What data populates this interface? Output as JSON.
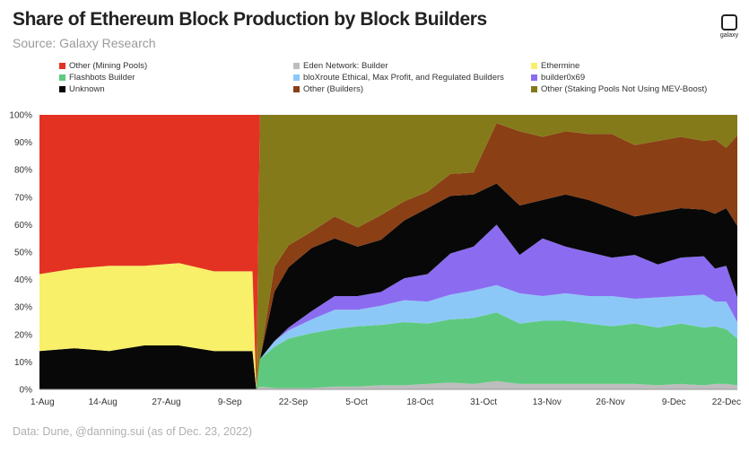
{
  "header": {
    "title": "Share of Ethereum Block Production by Block Builders",
    "subtitle": "Source: Galaxy Research",
    "logo_text": "galaxy"
  },
  "footer": {
    "note": "Data: Dune, @danning.sui (as of Dec. 23, 2022)"
  },
  "chart_data": {
    "type": "area",
    "stacked": true,
    "title": "Share of Ethereum Block Production by Block Builders",
    "xlabel": "",
    "ylabel": "",
    "ylim": [
      0,
      100
    ],
    "y_ticks": [
      "0%",
      "10%",
      "20%",
      "30%",
      "40%",
      "50%",
      "60%",
      "70%",
      "80%",
      "90%",
      "100%"
    ],
    "x_ticks": [
      "1-Aug",
      "14-Aug",
      "27-Aug",
      "9-Sep",
      "22-Sep",
      "5-Oct",
      "18-Oct",
      "31-Oct",
      "13-Nov",
      "26-Nov",
      "9-Dec",
      "22-Dec"
    ],
    "x": [
      "1-Aug",
      "8-Aug",
      "14-Aug",
      "21-Aug",
      "27-Aug",
      "3-Sep",
      "9-Sep",
      "14-Sep",
      "15-Sep",
      "16-Sep",
      "19-Sep",
      "22-Sep",
      "27-Sep",
      "2-Oct",
      "5-Oct",
      "10-Oct",
      "14-Oct",
      "18-Oct",
      "23-Oct",
      "27-Oct",
      "31-Oct",
      "3-Nov",
      "8-Nov",
      "13-Nov",
      "17-Nov",
      "21-Nov",
      "26-Nov",
      "30-Nov",
      "5-Dec",
      "9-Dec",
      "13-Dec",
      "18-Dec",
      "22-Dec"
    ],
    "legend_position": "top",
    "grid": false,
    "series": [
      {
        "name": "Eden Network: Builder",
        "color": "#bdbdbd",
        "values": [
          0,
          0,
          0,
          0,
          0,
          0,
          0,
          0,
          0,
          1,
          0.5,
          0.5,
          0.5,
          1,
          1,
          1.5,
          1.5,
          2,
          2.5,
          2,
          3,
          2,
          2,
          2,
          2,
          2,
          2,
          1.5,
          2,
          1.5,
          2,
          2,
          1.5
        ]
      },
      {
        "name": "Flashbots Builder",
        "color": "#5ec97e",
        "values": [
          0,
          0,
          0,
          0,
          0,
          0,
          0,
          0,
          0,
          10,
          15,
          18,
          20,
          21,
          22,
          22,
          23,
          22,
          23,
          24,
          25,
          22,
          23,
          23,
          22,
          21,
          22,
          21,
          22,
          21,
          21,
          20,
          17
        ]
      },
      {
        "name": "bloXroute Ethical, Max Profit, and Regulated Builders",
        "color": "#8cc8f7",
        "values": [
          0,
          0,
          0,
          0,
          0,
          0,
          0,
          0,
          0,
          0,
          2,
          3,
          5,
          7,
          6,
          7,
          8,
          8,
          9,
          10,
          10,
          11,
          9,
          10,
          10,
          11,
          9,
          11,
          10,
          12,
          9,
          10,
          6
        ]
      },
      {
        "name": "builder0x69",
        "color": "#8b6cf0",
        "values": [
          0,
          0,
          0,
          0,
          0,
          0,
          0,
          0,
          0,
          0,
          0,
          1,
          3,
          5,
          5,
          5,
          8,
          10,
          15,
          16,
          22,
          14,
          21,
          17,
          16,
          14,
          16,
          12,
          14,
          14,
          12,
          13,
          9
        ]
      },
      {
        "name": "Unknown",
        "color": "#080808",
        "values": [
          14,
          15,
          14,
          16,
          16,
          14,
          14,
          14,
          0,
          0,
          18,
          22,
          23,
          21,
          18,
          19,
          21,
          24,
          21,
          19,
          15,
          18,
          14,
          19,
          19,
          18,
          14,
          19,
          18,
          17,
          20,
          21,
          26
        ]
      },
      {
        "name": "Other (Builders)",
        "color": "#8a3f15",
        "values": [
          0,
          0,
          0,
          0,
          0,
          0,
          0,
          0,
          0,
          0,
          9,
          8,
          6,
          8,
          7,
          9,
          7,
          6,
          8,
          8,
          22,
          27,
          23,
          23,
          24,
          27,
          26,
          26,
          26,
          25,
          27,
          22,
          33
        ]
      },
      {
        "name": "Other (Staking Pools Not Using MEV-Boost)",
        "color": "#857a1a",
        "values": [
          0,
          0,
          0,
          0,
          0,
          0,
          0,
          0,
          0,
          89,
          55.5,
          47.5,
          42.5,
          37,
          41,
          36.5,
          31.5,
          28,
          21.5,
          21,
          3,
          6,
          8,
          6,
          7,
          7,
          11,
          9.5,
          8,
          9.5,
          9,
          12,
          7.5
        ]
      },
      {
        "name": "Ethermine",
        "color": "#f8f068",
        "values": [
          28,
          29,
          31,
          29,
          30,
          29,
          29,
          29,
          0,
          0,
          0,
          0,
          0,
          0,
          0,
          0,
          0,
          0,
          0,
          0,
          0,
          0,
          0,
          0,
          0,
          0,
          0,
          0,
          0,
          0,
          0,
          0,
          0
        ]
      },
      {
        "name": "Other (Mining Pools)",
        "color": "#e33222",
        "values": [
          58,
          56,
          55,
          55,
          54,
          57,
          57,
          57,
          100,
          0,
          0,
          0,
          0,
          0,
          0,
          0,
          0,
          0,
          0,
          0,
          0,
          0,
          0,
          0,
          0,
          0,
          0,
          0,
          0,
          0,
          0,
          0,
          0
        ]
      }
    ],
    "legend_order": [
      "Other (Mining Pools)",
      "Eden Network: Builder",
      "Ethermine",
      "Flashbots Builder",
      "bloXroute Ethical, Max Profit, and Regulated Builders",
      "builder0x69",
      "Unknown",
      "Other (Builders)",
      "Other (Staking Pools Not Using MEV-Boost)"
    ]
  }
}
